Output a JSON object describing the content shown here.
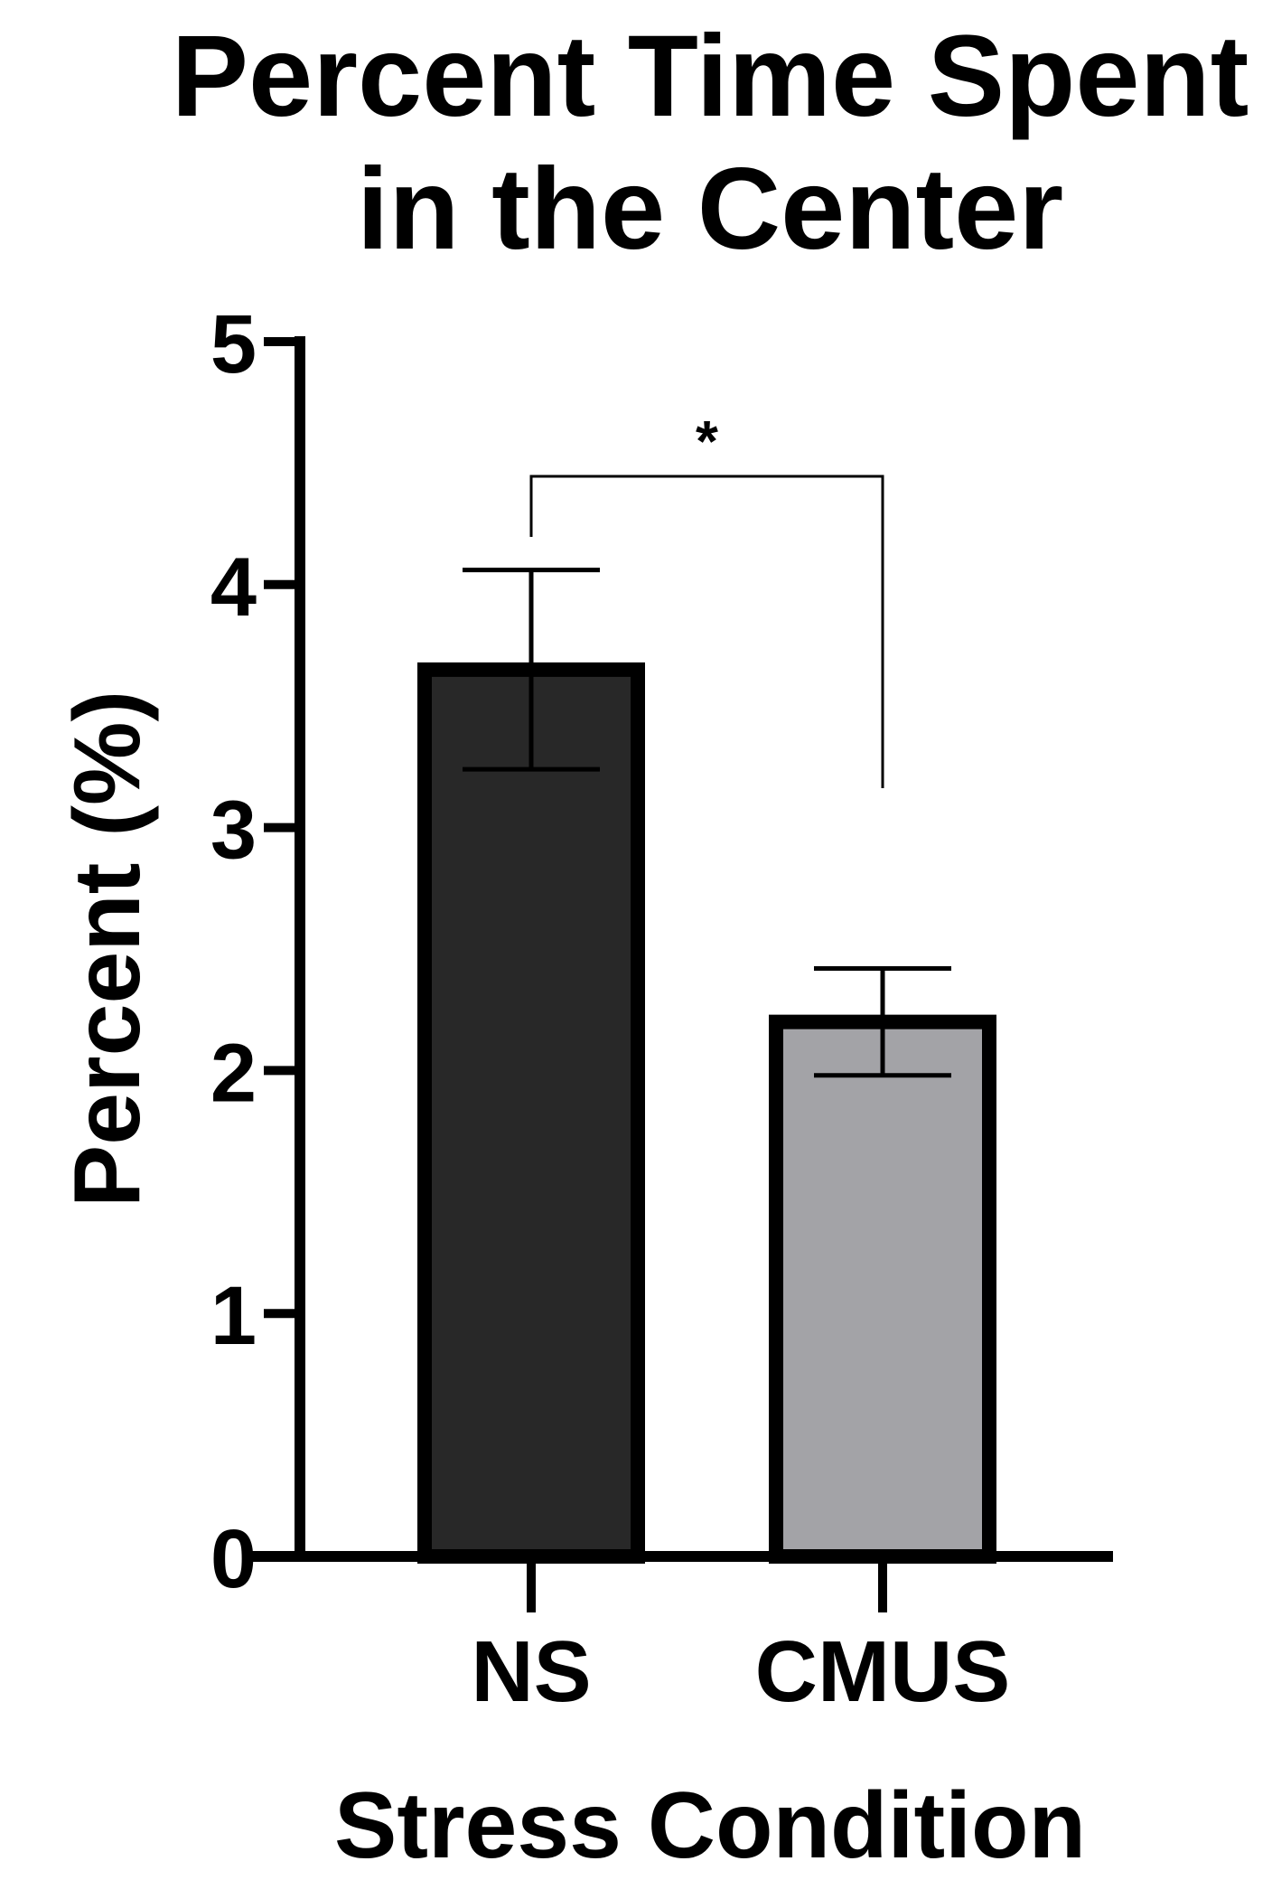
{
  "chart_data": {
    "type": "bar",
    "title_lines": [
      "Percent Time Spent",
      "in the Center"
    ],
    "xlabel": "Stress Condition",
    "ylabel": "Percent (%)",
    "ylim": [
      0,
      5
    ],
    "yticks": [
      0,
      1,
      2,
      3,
      4,
      5
    ],
    "categories": [
      "NS",
      "CMUS"
    ],
    "values": [
      3.65,
      2.2
    ],
    "error_bars": [
      0.41,
      0.22
    ],
    "bar_colors": [
      "#282828",
      "#a3a3a7"
    ],
    "grid": false,
    "significance": {
      "between": [
        "NS",
        "CMUS"
      ],
      "label": "*"
    }
  }
}
